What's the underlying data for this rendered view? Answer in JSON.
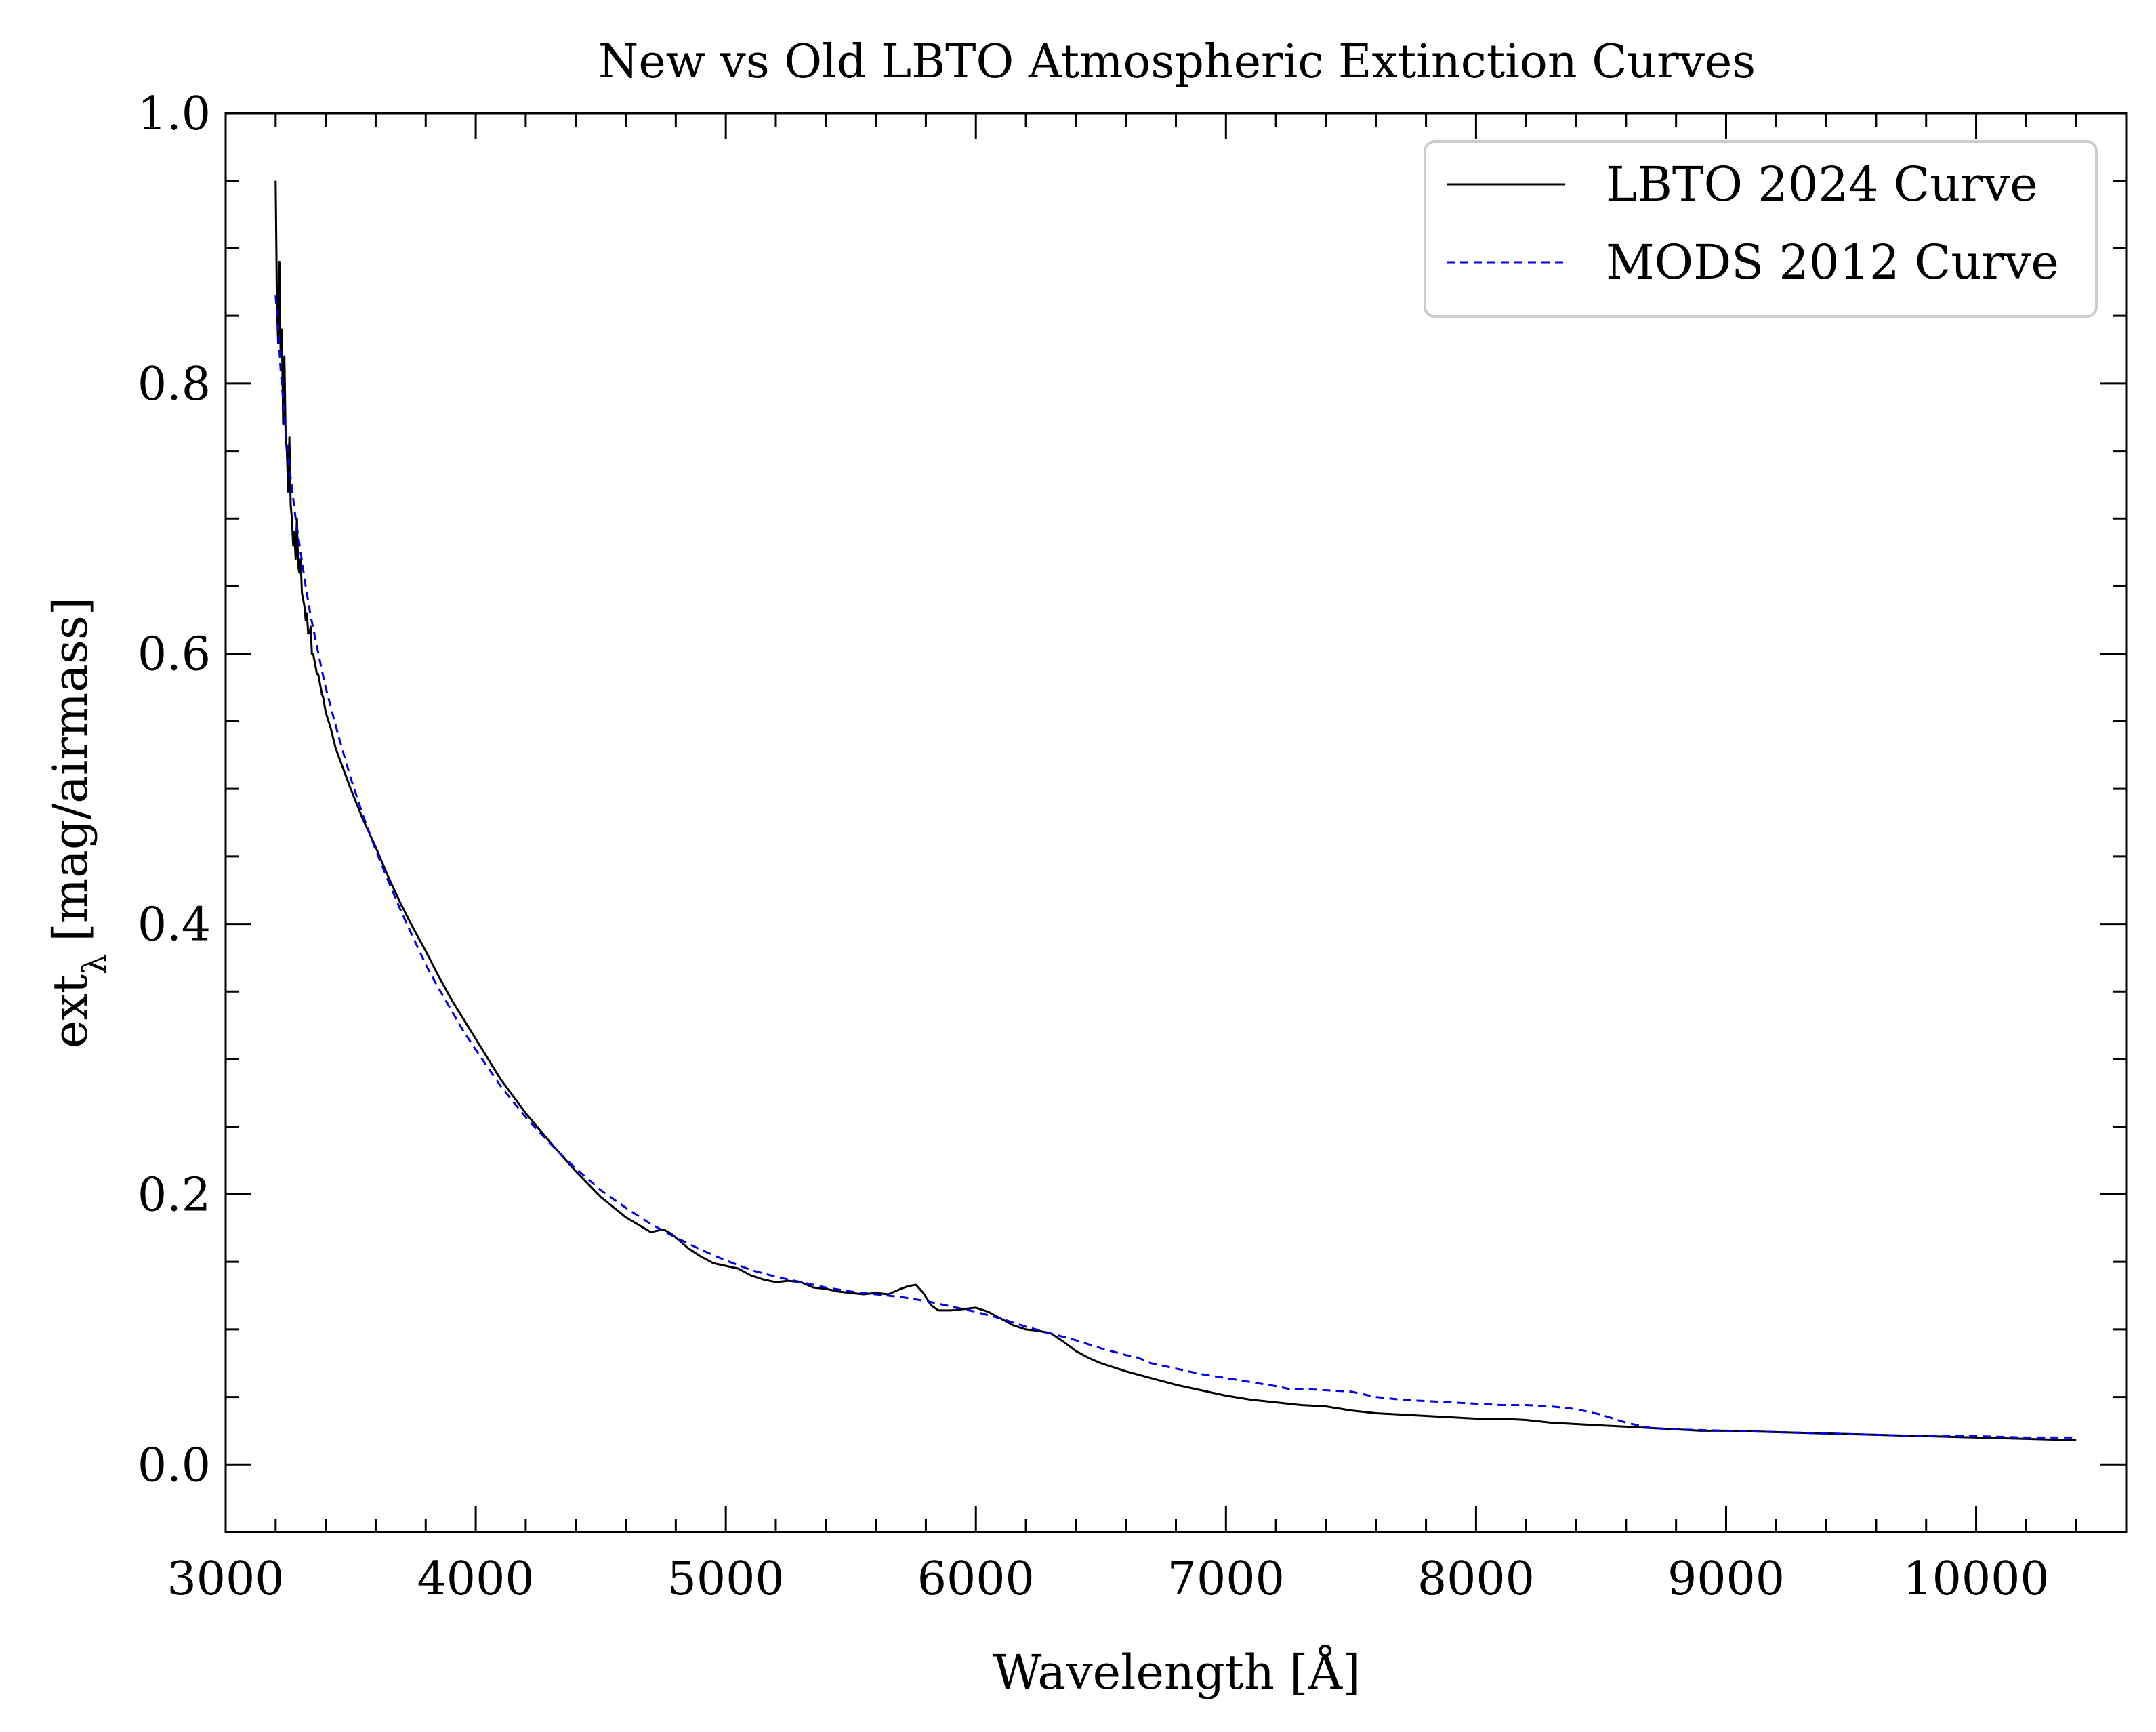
{
  "chart_data": {
    "type": "line",
    "title": "New vs Old LBTO Atmospheric Extinction Curves",
    "xlabel": "Wavelength [Å]",
    "ylabel": "ext",
    "ylabel_subscript": "λ",
    "ylabel_unit": "[mag/airmass]",
    "xlim": [
      3000,
      10600
    ],
    "ylim": [
      -0.05,
      1.0
    ],
    "xticks": [
      3000,
      4000,
      5000,
      6000,
      7000,
      8000,
      9000,
      10000
    ],
    "xtick_labels": [
      "3000",
      "4000",
      "5000",
      "6000",
      "7000",
      "8000",
      "9000",
      "10000"
    ],
    "yticks": [
      0.0,
      0.2,
      0.4,
      0.6,
      0.8,
      1.0
    ],
    "ytick_labels": [
      "0.0",
      "0.2",
      "0.4",
      "0.6",
      "0.8",
      "1.0"
    ],
    "grid": false,
    "legend_position": "top-right",
    "series": [
      {
        "name": "LBTO 2024 Curve",
        "color": "#000000",
        "style": "solid",
        "x": [
          3200,
          3205,
          3210,
          3215,
          3220,
          3225,
          3230,
          3235,
          3240,
          3245,
          3250,
          3255,
          3260,
          3265,
          3270,
          3275,
          3280,
          3285,
          3290,
          3295,
          3300,
          3305,
          3310,
          3315,
          3320,
          3325,
          3330,
          3335,
          3340,
          3345,
          3350,
          3355,
          3360,
          3365,
          3370,
          3375,
          3380,
          3385,
          3390,
          3395,
          3400,
          3420,
          3440,
          3460,
          3480,
          3500,
          3550,
          3600,
          3650,
          3700,
          3750,
          3800,
          3850,
          3900,
          3950,
          4000,
          4100,
          4200,
          4300,
          4400,
          4500,
          4600,
          4700,
          4750,
          4780,
          4800,
          4850,
          4900,
          4950,
          5000,
          5050,
          5100,
          5150,
          5200,
          5250,
          5300,
          5350,
          5400,
          5450,
          5500,
          5550,
          5600,
          5650,
          5700,
          5730,
          5760,
          5790,
          5820,
          5850,
          5900,
          5950,
          6000,
          6050,
          6100,
          6150,
          6200,
          6250,
          6300,
          6350,
          6400,
          6450,
          6500,
          6600,
          6700,
          6800,
          6900,
          7000,
          7100,
          7200,
          7300,
          7400,
          7500,
          7600,
          7700,
          7800,
          7900,
          8000,
          8100,
          8200,
          8300,
          8400,
          8500,
          8600,
          8700,
          8800,
          8900,
          9000,
          9200,
          9400,
          9600,
          9800,
          10000,
          10200,
          10400
        ],
        "y": [
          0.95,
          0.86,
          0.83,
          0.89,
          0.82,
          0.84,
          0.77,
          0.82,
          0.76,
          0.75,
          0.72,
          0.76,
          0.71,
          0.7,
          0.68,
          0.69,
          0.67,
          0.7,
          0.665,
          0.66,
          0.67,
          0.645,
          0.64,
          0.635,
          0.625,
          0.63,
          0.615,
          0.615,
          0.62,
          0.6,
          0.6,
          0.595,
          0.59,
          0.585,
          0.585,
          0.58,
          0.575,
          0.57,
          0.568,
          0.562,
          0.557,
          0.545,
          0.53,
          0.52,
          0.51,
          0.5,
          0.477,
          0.457,
          0.435,
          0.415,
          0.397,
          0.38,
          0.362,
          0.345,
          0.33,
          0.315,
          0.285,
          0.26,
          0.238,
          0.217,
          0.198,
          0.183,
          0.172,
          0.174,
          0.171,
          0.168,
          0.16,
          0.154,
          0.149,
          0.147,
          0.145,
          0.14,
          0.137,
          0.135,
          0.136,
          0.135,
          0.131,
          0.13,
          0.128,
          0.127,
          0.126,
          0.127,
          0.126,
          0.13,
          0.132,
          0.133,
          0.127,
          0.118,
          0.114,
          0.114,
          0.115,
          0.116,
          0.113,
          0.108,
          0.103,
          0.1,
          0.099,
          0.097,
          0.091,
          0.084,
          0.079,
          0.075,
          0.069,
          0.064,
          0.059,
          0.055,
          0.051,
          0.048,
          0.046,
          0.044,
          0.043,
          0.04,
          0.038,
          0.037,
          0.036,
          0.035,
          0.034,
          0.034,
          0.033,
          0.031,
          0.03,
          0.029,
          0.028,
          0.027,
          0.026,
          0.025,
          0.025,
          0.024,
          0.023,
          0.022,
          0.021,
          0.02,
          0.019,
          0.018
        ]
      },
      {
        "name": "MODS 2012 Curve",
        "color": "#0000ee",
        "style": "dashed",
        "x": [
          3200,
          3210,
          3220,
          3240,
          3260,
          3280,
          3300,
          3320,
          3340,
          3360,
          3380,
          3400,
          3450,
          3500,
          3550,
          3600,
          3650,
          3700,
          3750,
          3800,
          3850,
          3900,
          3950,
          4000,
          4100,
          4200,
          4300,
          4400,
          4500,
          4600,
          4700,
          4800,
          4900,
          5000,
          5100,
          5200,
          5300,
          5400,
          5500,
          5600,
          5700,
          5800,
          5900,
          6000,
          6100,
          6200,
          6300,
          6400,
          6500,
          6600,
          6650,
          6700,
          6800,
          6900,
          7000,
          7100,
          7200,
          7250,
          7300,
          7400,
          7500,
          7550,
          7600,
          7700,
          7800,
          7900,
          8000,
          8100,
          8200,
          8300,
          8400,
          8500,
          8600,
          8700,
          8800,
          9000,
          9200,
          9400,
          9600,
          9800,
          10000,
          10200,
          10400
        ],
        "y": [
          0.865,
          0.84,
          0.81,
          0.765,
          0.73,
          0.7,
          0.675,
          0.65,
          0.628,
          0.61,
          0.592,
          0.575,
          0.54,
          0.508,
          0.48,
          0.455,
          0.432,
          0.41,
          0.39,
          0.37,
          0.353,
          0.337,
          0.321,
          0.307,
          0.28,
          0.257,
          0.237,
          0.219,
          0.203,
          0.19,
          0.178,
          0.168,
          0.159,
          0.151,
          0.144,
          0.139,
          0.135,
          0.131,
          0.128,
          0.126,
          0.124,
          0.121,
          0.117,
          0.113,
          0.108,
          0.102,
          0.097,
          0.092,
          0.086,
          0.081,
          0.079,
          0.075,
          0.071,
          0.067,
          0.064,
          0.061,
          0.058,
          0.056,
          0.056,
          0.055,
          0.054,
          0.052,
          0.05,
          0.048,
          0.047,
          0.046,
          0.045,
          0.044,
          0.044,
          0.043,
          0.041,
          0.037,
          0.031,
          0.027,
          0.026,
          0.025,
          0.024,
          0.023,
          0.022,
          0.021,
          0.021,
          0.02,
          0.02
        ]
      }
    ]
  }
}
